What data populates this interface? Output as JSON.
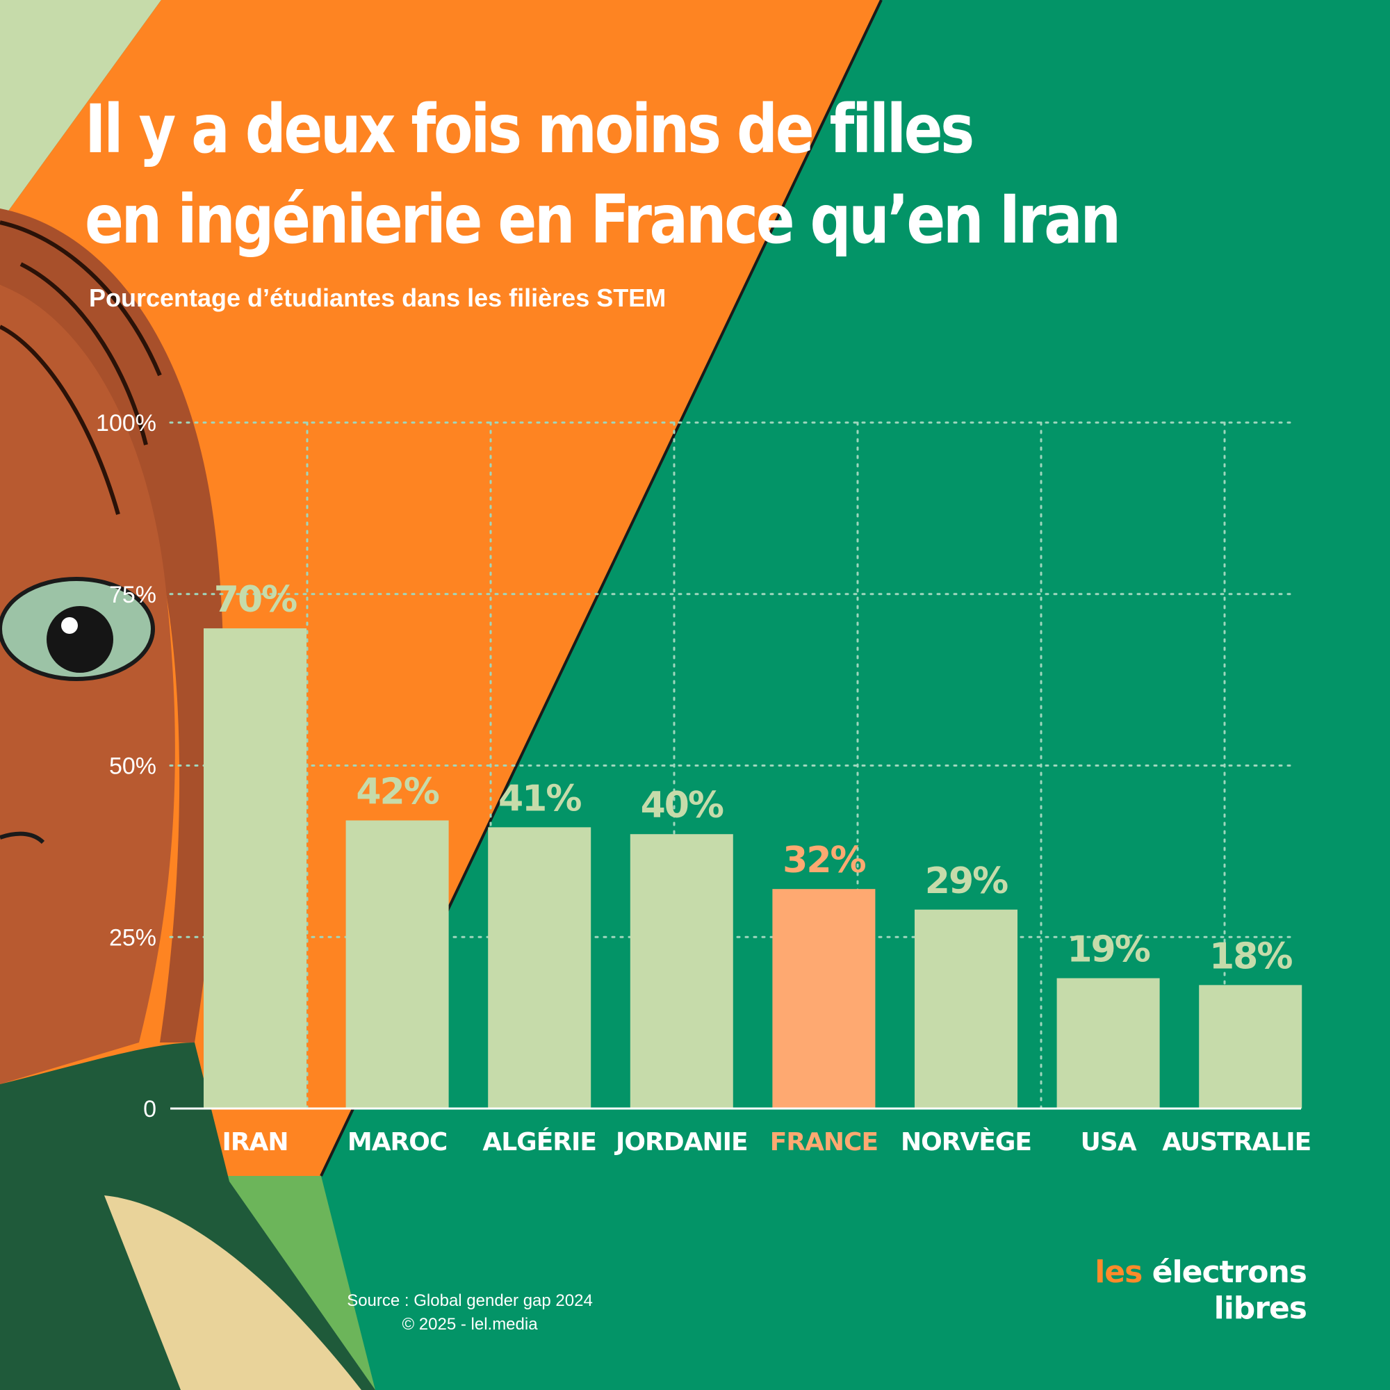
{
  "title_lines": [
    "Il y a deux fois moins de filles",
    "en ingénierie en France qu’en Iran"
  ],
  "subtitle": "Pourcentage d’étudiantes dans les filières STEM",
  "colors": {
    "background_green": "#039467",
    "orange_band": "#fe8422",
    "pale_green": "#c6dbaa",
    "france_highlight": "#fea971",
    "grid": "#9fd6bd"
  },
  "chart_data": {
    "type": "bar",
    "title": "Il y a deux fois moins de filles en ingénierie en France qu’en Iran",
    "subtitle": "Pourcentage d’étudiantes dans les filières STEM",
    "categories": [
      "IRAN",
      "MAROC",
      "ALGÉRIE",
      "JORDANIE",
      "FRANCE",
      "NORVÈGE",
      "USA",
      "AUSTRALIE"
    ],
    "values": [
      70,
      42,
      41,
      40,
      32,
      29,
      19,
      18
    ],
    "value_labels": [
      "70%",
      "42%",
      "41%",
      "40%",
      "32%",
      "29%",
      "19%",
      "18%"
    ],
    "highlight": "FRANCE",
    "yticks": [
      0,
      25,
      50,
      75,
      100
    ],
    "ytick_labels": [
      "0",
      "25%",
      "50%",
      "75%",
      "100%"
    ],
    "ylim": [
      0,
      100
    ],
    "grid": true
  },
  "source": "Source : Global gender gap 2024",
  "copyright": "© 2025 - lel.media",
  "logo": {
    "word1": "les",
    "word2": "électrons",
    "word3": "libres"
  }
}
